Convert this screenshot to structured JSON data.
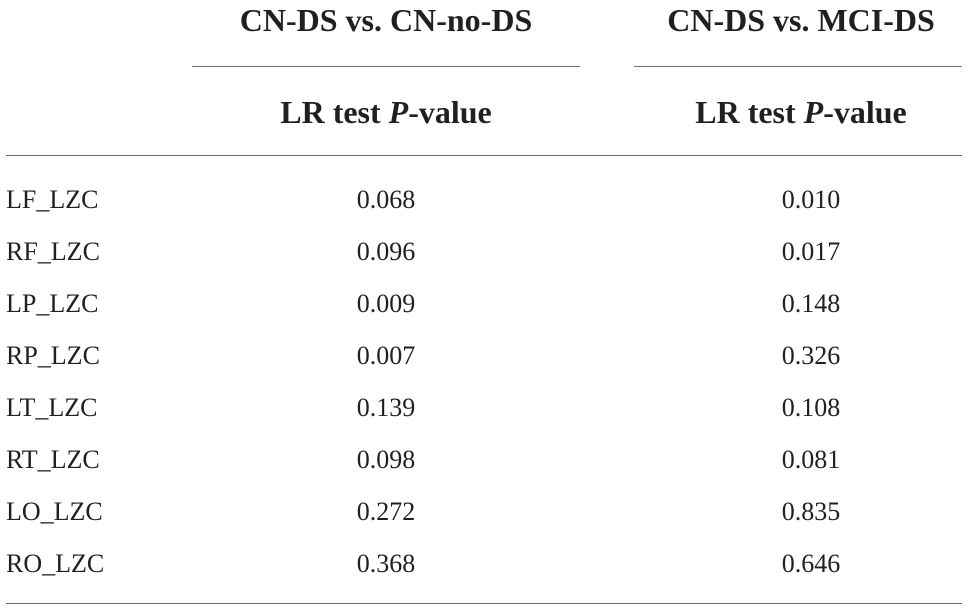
{
  "table": {
    "groups": [
      {
        "title": "CN-DS vs. CN-no-DS",
        "subheader": {
          "prefix": "LR test ",
          "italic": "P",
          "suffix": "-value"
        }
      },
      {
        "title": "CN-DS vs. MCI-DS",
        "subheader": {
          "prefix": "LR test ",
          "italic": "P",
          "suffix": "-value"
        }
      }
    ],
    "rows": [
      {
        "label": "LF_LZC",
        "v1": "0.068",
        "v2": "0.010"
      },
      {
        "label": "RF_LZC",
        "v1": "0.096",
        "v2": "0.017"
      },
      {
        "label": "LP_LZC",
        "v1": "0.009",
        "v2": "0.148"
      },
      {
        "label": "RP_LZC",
        "v1": "0.007",
        "v2": "0.326"
      },
      {
        "label": "LT_LZC",
        "v1": "0.139",
        "v2": "0.108"
      },
      {
        "label": "RT_LZC",
        "v1": "0.098",
        "v2": "0.081"
      },
      {
        "label": "LO_LZC",
        "v1": "0.272",
        "v2": "0.835"
      },
      {
        "label": "RO_LZC",
        "v1": "0.368",
        "v2": "0.646"
      }
    ]
  }
}
